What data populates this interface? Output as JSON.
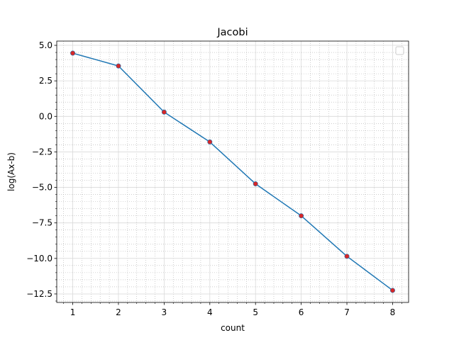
{
  "chart_data": {
    "type": "line",
    "title": "Jacobi",
    "xlabel": "count",
    "ylabel": "log(Ax-b)",
    "xlim": [
      0.65,
      8.35
    ],
    "ylim": [
      -13.1,
      5.3
    ],
    "x_ticks": [
      1,
      2,
      3,
      4,
      5,
      6,
      7,
      8
    ],
    "x_tick_labels": [
      "1",
      "2",
      "3",
      "4",
      "5",
      "6",
      "7",
      "8"
    ],
    "y_ticks": [
      5.0,
      2.5,
      0.0,
      -2.5,
      -5.0,
      -7.5,
      -10.0,
      -12.5
    ],
    "y_tick_labels": [
      "5.0",
      "2.5",
      "0.0",
      "−2.5",
      "−5.0",
      "−7.5",
      "−10.0",
      "−12.5"
    ],
    "grid": true,
    "minor_grid": true,
    "legend": "top-right",
    "series": [
      {
        "x": [
          1,
          2,
          3,
          4,
          5,
          6,
          7,
          8
        ],
        "values": [
          4.45,
          3.55,
          0.3,
          -1.8,
          -4.75,
          -7.0,
          -9.85,
          -12.25
        ],
        "line_color": "#1f77b4",
        "marker_color": "#d62728"
      }
    ]
  }
}
